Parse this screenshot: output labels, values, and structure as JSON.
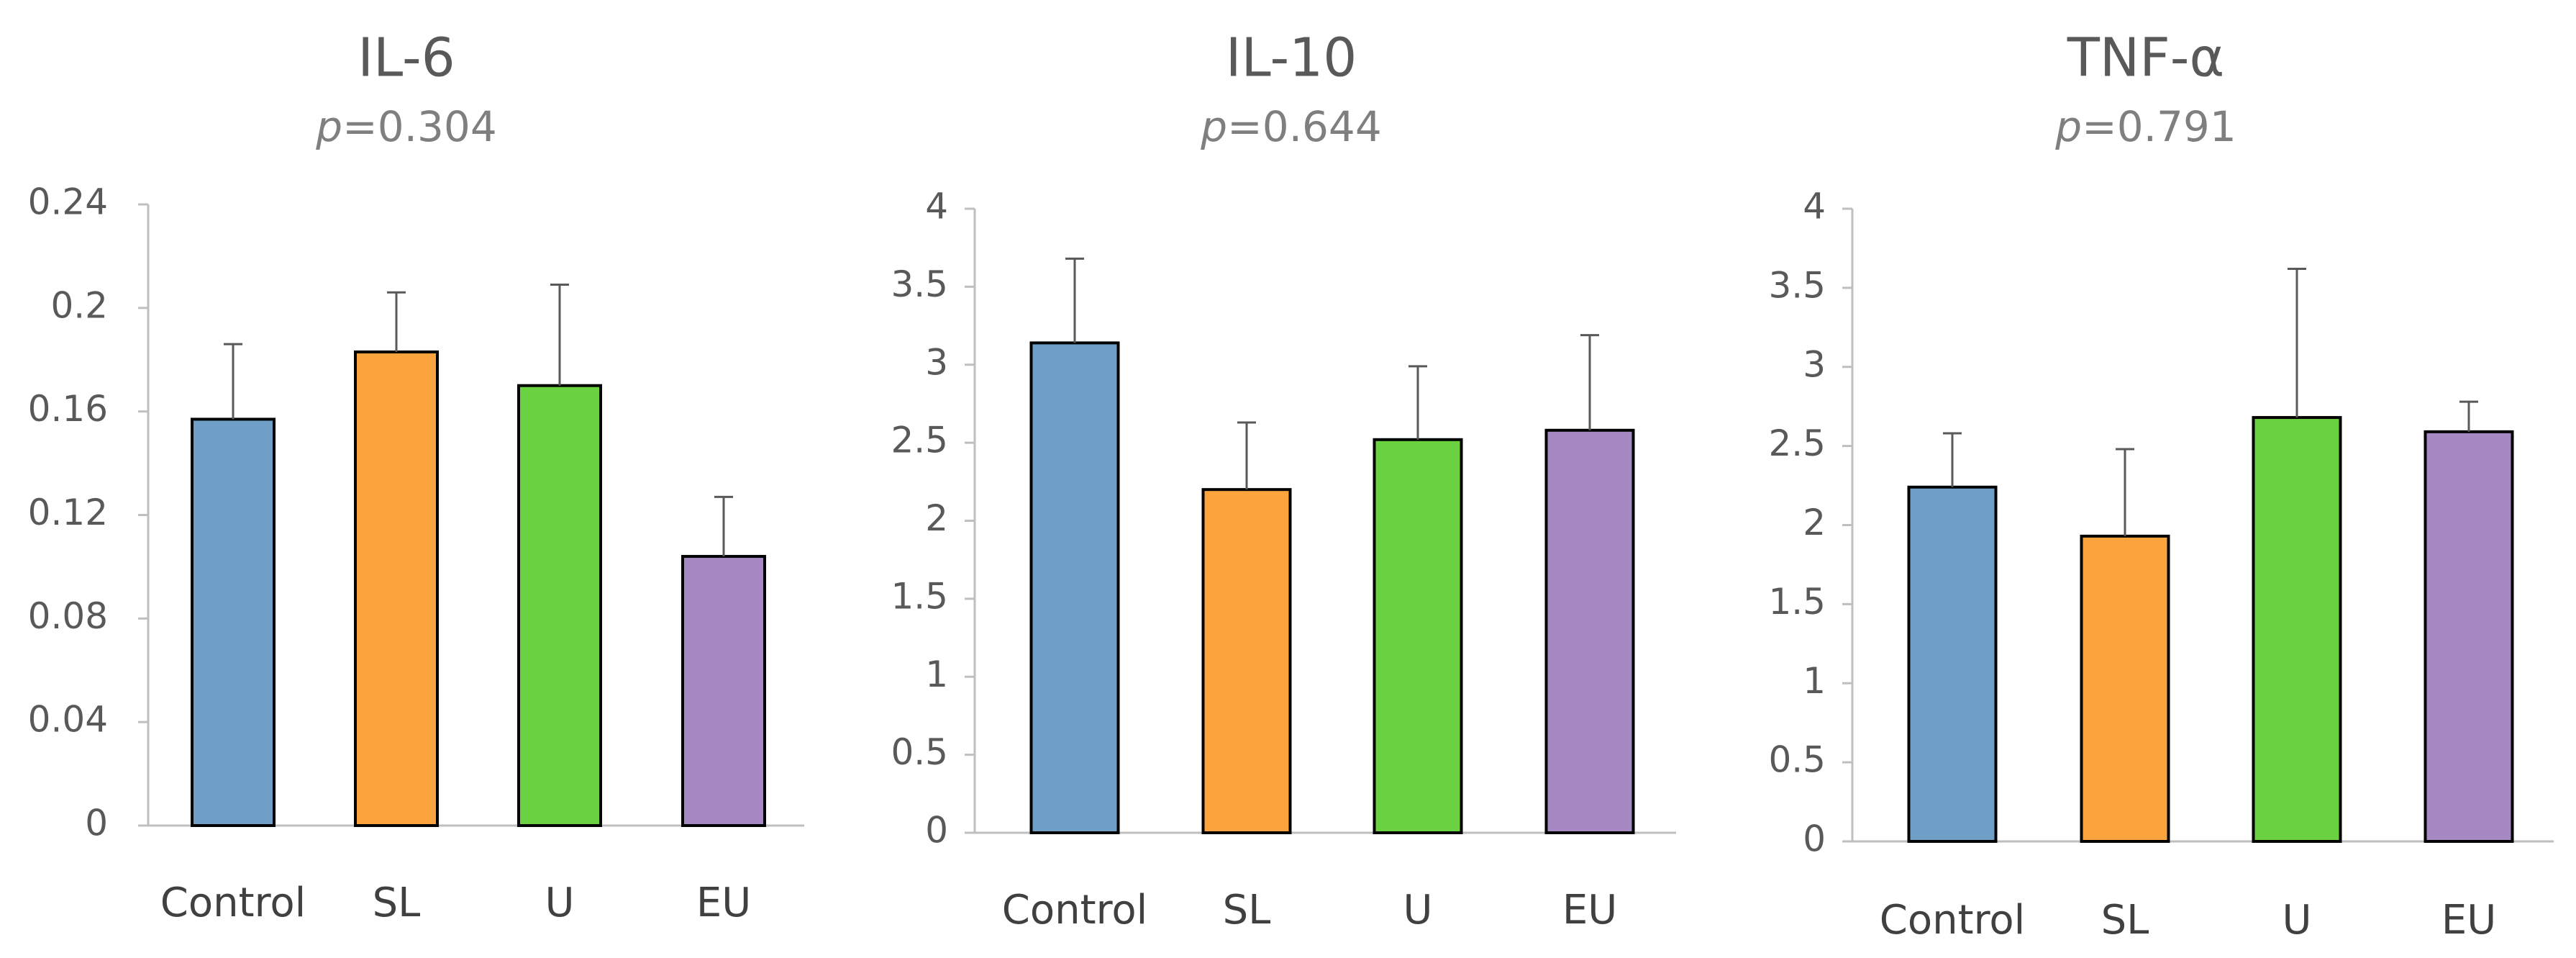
{
  "colors": {
    "Control": "#6f9fc6",
    "SL": "#fba33d",
    "U": "#6ad140",
    "EU": "#a688c3",
    "axis": "#bfbfbf",
    "error_bar": "#595959",
    "bar_outline": "#000000"
  },
  "chart_data": [
    {
      "type": "bar",
      "title": "IL-6",
      "p_prefix": "p",
      "p_value": "=0.304",
      "categories": [
        "Control",
        "SL",
        "U",
        "EU"
      ],
      "values": [
        0.157,
        0.183,
        0.17,
        0.104
      ],
      "errors": [
        0.029,
        0.023,
        0.039,
        0.023
      ],
      "ylim": [
        0,
        0.24
      ],
      "yticks": [
        "0",
        "0.04",
        "0.08",
        "0.12",
        "0.16",
        "0.2",
        "0.24"
      ],
      "grid": false
    },
    {
      "type": "bar",
      "title": "IL-10",
      "p_prefix": "p",
      "p_value": "=0.644",
      "categories": [
        "Control",
        "SL",
        "U",
        "EU"
      ],
      "values": [
        3.14,
        2.2,
        2.52,
        2.58
      ],
      "errors": [
        0.54,
        0.43,
        0.47,
        0.61
      ],
      "ylim": [
        0,
        4
      ],
      "yticks": [
        "0",
        "0.5",
        "1",
        "1.5",
        "2",
        "2.5",
        "3",
        "3.5",
        "4"
      ],
      "grid": false
    },
    {
      "type": "bar",
      "title": "TNF-α",
      "p_prefix": "p",
      "p_value": "=0.791",
      "categories": [
        "Control",
        "SL",
        "U",
        "EU"
      ],
      "values": [
        2.24,
        1.93,
        2.68,
        2.59
      ],
      "errors": [
        0.34,
        0.55,
        0.94,
        0.19
      ],
      "ylim": [
        0,
        4
      ],
      "yticks": [
        "0",
        "0.5",
        "1",
        "1.5",
        "2",
        "2.5",
        "3",
        "3.5",
        "4"
      ],
      "grid": false
    }
  ]
}
